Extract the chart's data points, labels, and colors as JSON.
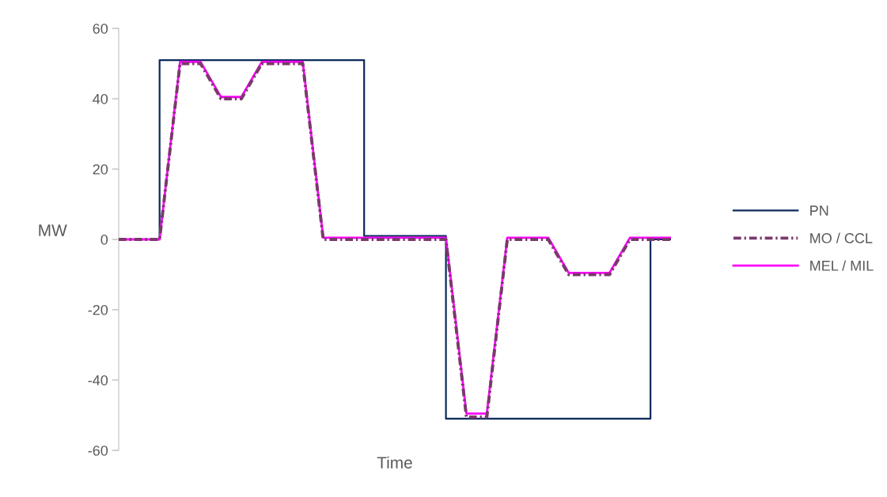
{
  "chart_data": {
    "type": "line",
    "xlabel": "Time",
    "ylabel": "MW",
    "categories": [
      null,
      null,
      null,
      null,
      null,
      null,
      null,
      null,
      null,
      null,
      null,
      null,
      null,
      null,
      null,
      null,
      null,
      null,
      null,
      null,
      null,
      null,
      null,
      null,
      null,
      null,
      null,
      null
    ],
    "ylim": [
      -60,
      60
    ],
    "yticks": [
      -60,
      -40,
      -20,
      0,
      20,
      40,
      60
    ],
    "grid": false,
    "legend": "right",
    "tick_labels": "y",
    "series": [
      {
        "name": "PN",
        "type": "step",
        "color": "#0b2a5c",
        "line_style": "solid",
        "values": [
          0,
          0,
          51,
          51,
          51,
          51,
          51,
          51,
          51,
          51,
          51,
          51,
          1,
          1,
          1,
          1,
          -51,
          -51,
          -51,
          -51,
          -51,
          -51,
          -51,
          -51,
          -51,
          -51,
          0,
          0
        ]
      },
      {
        "name": "MO / CCL",
        "color": "#7a3a6a",
        "line_style": "dashdot",
        "values": [
          0,
          0,
          0,
          50,
          50,
          40,
          40,
          50,
          50,
          50,
          0,
          0,
          0,
          0,
          0,
          0,
          0,
          -50.5,
          -50.5,
          0,
          0,
          0,
          -10,
          -10,
          -10,
          0,
          0,
          0
        ]
      },
      {
        "name": "MEL / MIL",
        "color": "#ff00ff",
        "line_style": "solid",
        "values": [
          0,
          0,
          0,
          50.5,
          50.5,
          40.5,
          40.5,
          50.5,
          50.5,
          50.5,
          0.5,
          0.5,
          0.5,
          0.5,
          0.5,
          0.5,
          0.5,
          -49.5,
          -49.5,
          0.5,
          0.5,
          0.5,
          -9.5,
          -9.5,
          -9.5,
          0.5,
          0.5,
          0.5
        ]
      }
    ]
  }
}
